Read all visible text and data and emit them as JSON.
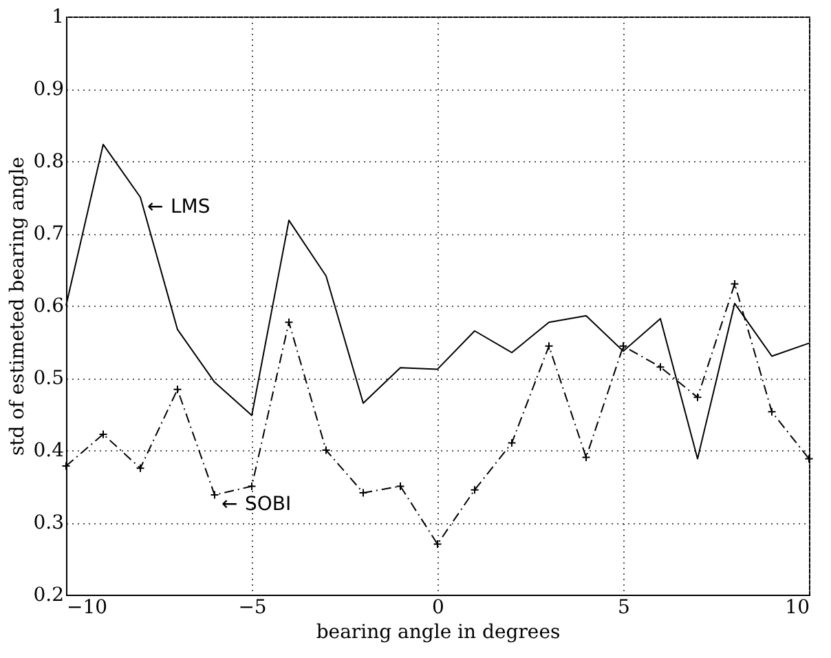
{
  "chart_data": {
    "type": "line",
    "xlabel": "bearing angle in degrees",
    "ylabel": "std of estimeted bearing angle",
    "x": [
      -10,
      -9,
      -8,
      -7,
      -6,
      -5,
      -4,
      -3,
      -2,
      -1,
      0,
      1,
      2,
      3,
      4,
      5,
      6,
      7,
      8,
      9,
      10
    ],
    "series": [
      {
        "name": "LMS",
        "color": "#000000",
        "line_style": "solid",
        "marker": "none",
        "values": [
          0.6,
          0.823,
          0.75,
          0.567,
          0.494,
          0.448,
          0.718,
          0.641,
          0.465,
          0.514,
          0.512,
          0.565,
          0.535,
          0.577,
          0.586,
          0.537,
          0.582,
          0.388,
          0.603,
          0.53,
          0.548
        ]
      },
      {
        "name": "SOBI",
        "color": "#000000",
        "line_style": "dashed",
        "marker": "cross",
        "values": [
          0.378,
          0.422,
          0.375,
          0.484,
          0.338,
          0.35,
          0.577,
          0.4,
          0.341,
          0.35,
          0.27,
          0.345,
          0.41,
          0.544,
          0.39,
          0.544,
          0.515,
          0.473,
          0.63,
          0.453,
          0.388
        ]
      }
    ],
    "xlim": [
      -10,
      10
    ],
    "xticks": [
      -10,
      -5,
      0,
      5,
      10
    ],
    "annotations": [
      {
        "text": "←",
        "x": -8,
        "y": 0.75
      },
      {
        "text": "←",
        "x": -6,
        "y": 0.338
      }
    ],
    "ylim": [
      0.2,
      1
    ],
    "yticks": [
      0.2,
      0.3,
      0.4,
      0.5,
      0.6,
      0.7,
      0.8,
      0.9,
      {
        "value": 1,
        "label": "1"
      }
    ],
    "grid": true
  }
}
